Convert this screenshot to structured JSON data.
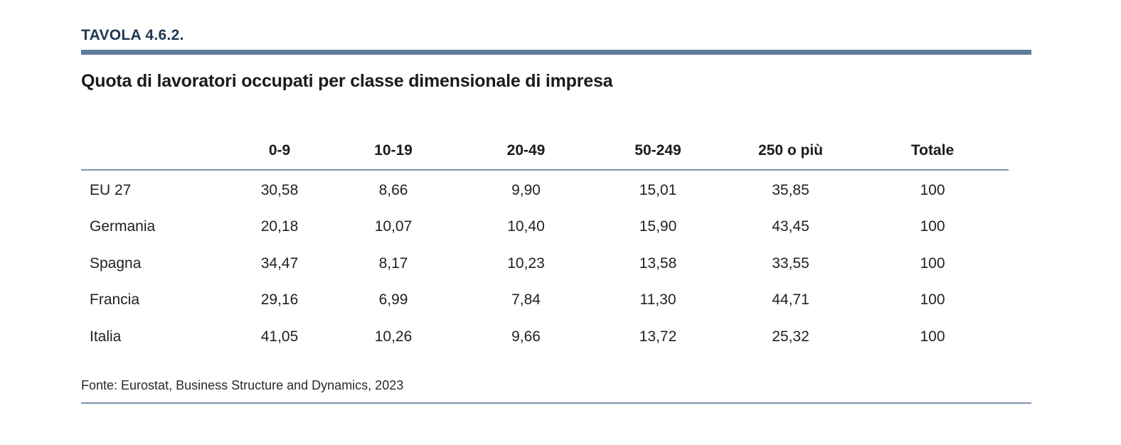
{
  "header": {
    "label": "TAVOLA 4.6.2.",
    "title": "Quota di lavoratori occupati per classe dimensionale di impresa",
    "rule_color": "#5f7b9c",
    "label_color": "#1e3552"
  },
  "table": {
    "columns": [
      "",
      "0-9",
      "10-19",
      "20-49",
      "50-249",
      "250 o più",
      "Totale"
    ],
    "rows": [
      {
        "country": "EU 27",
        "values": [
          "30,58",
          "8,66",
          "9,90",
          "15,01",
          "35,85",
          "100"
        ]
      },
      {
        "country": "Germania",
        "values": [
          "20,18",
          "10,07",
          "10,40",
          "15,90",
          "43,45",
          "100"
        ]
      },
      {
        "country": "Spagna",
        "values": [
          "34,47",
          "8,17",
          "10,23",
          "13,58",
          "33,55",
          "100"
        ]
      },
      {
        "country": "Francia",
        "values": [
          "29,16",
          "6,99",
          "7,84",
          "11,30",
          "44,71",
          "100"
        ]
      },
      {
        "country": "Italia",
        "values": [
          "41,05",
          "10,26",
          "9,66",
          "13,72",
          "25,32",
          "100"
        ]
      }
    ]
  },
  "footer": {
    "source": "Fonte: Eurostat, Business Structure and Dynamics, 2023"
  }
}
